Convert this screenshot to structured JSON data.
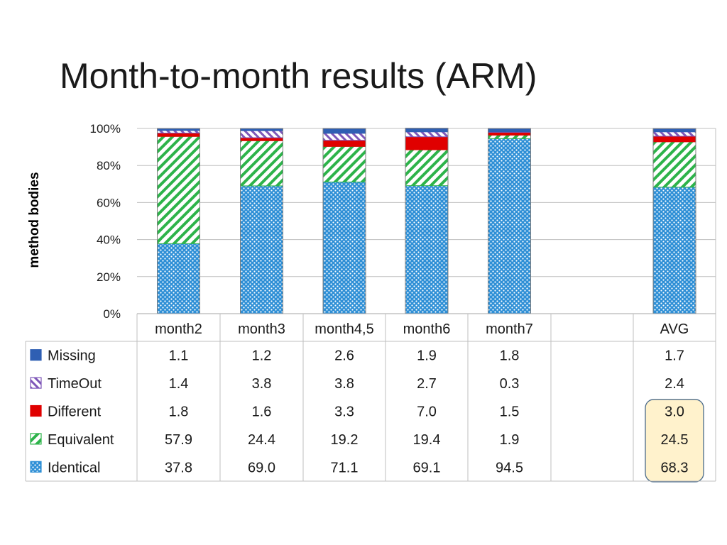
{
  "title": "Month-to-month results (ARM)",
  "chart_data": {
    "type": "bar",
    "stacked": true,
    "percent": true,
    "ylabel": "method bodies",
    "yticks": [
      "0%",
      "20%",
      "40%",
      "60%",
      "80%",
      "100%"
    ],
    "ylim": [
      0,
      100
    ],
    "grid": true,
    "legend": "table-left",
    "categories": [
      "month2",
      "month3",
      "month4,5",
      "month6",
      "month7",
      "",
      "AVG"
    ],
    "series": [
      {
        "name": "Missing",
        "values": [
          "1.1",
          "1.2",
          "2.6",
          "1.9",
          "1.8",
          "",
          "1.7"
        ],
        "color": "#2f5fb3",
        "pattern": "solid"
      },
      {
        "name": "TimeOut",
        "values": [
          "1.4",
          "3.8",
          "3.8",
          "2.7",
          "0.3",
          "",
          "2.4"
        ],
        "color": "#7e57b8",
        "pattern": "diagonal"
      },
      {
        "name": "Different",
        "values": [
          "1.8",
          "1.6",
          "3.3",
          "7.0",
          "1.5",
          "",
          "3.0"
        ],
        "color": "#e00000",
        "pattern": "solid"
      },
      {
        "name": "Equivalent",
        "values": [
          "57.9",
          "24.4",
          "19.2",
          "19.4",
          "1.9",
          "",
          "24.5"
        ],
        "color": "#2db34a",
        "pattern": "diagonal"
      },
      {
        "name": "Identical",
        "values": [
          "37.8",
          "69.0",
          "71.1",
          "69.1",
          "94.5",
          "",
          "68.3"
        ],
        "color": "#2e8fd6",
        "pattern": "dots"
      }
    ],
    "highlight": {
      "category": "AVG",
      "series": [
        "Different",
        "Equivalent",
        "Identical"
      ],
      "color": "#fff2cc"
    }
  }
}
